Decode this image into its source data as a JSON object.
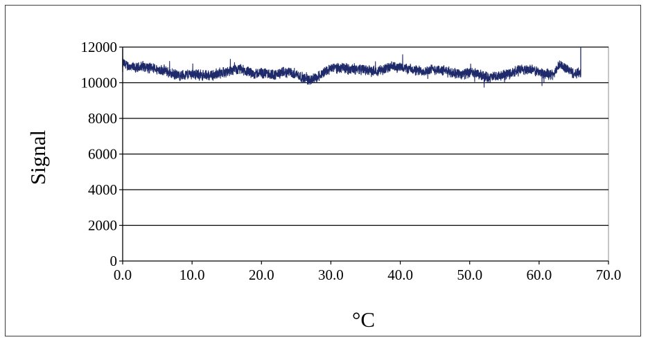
{
  "chart_data": {
    "type": "line",
    "title": "",
    "xlabel": "°C",
    "ylabel": "Signal",
    "xlim": [
      0,
      70
    ],
    "ylim": [
      0,
      12000
    ],
    "x_ticks": [
      "0.0",
      "10.0",
      "20.0",
      "30.0",
      "40.0",
      "50.0",
      "60.0",
      "70.0"
    ],
    "y_ticks": [
      "0",
      "2000",
      "4000",
      "6000",
      "8000",
      "10000",
      "12000"
    ],
    "grid": "horizontal",
    "legend": "none",
    "series": [
      {
        "color": "#1f2a6b",
        "points": [
          [
            0.0,
            11100
          ],
          [
            1.0,
            10900
          ],
          [
            2.0,
            10800
          ],
          [
            3.0,
            10950
          ],
          [
            4.0,
            10800
          ],
          [
            5.0,
            10750
          ],
          [
            6.0,
            10700
          ],
          [
            7.0,
            10500
          ],
          [
            8.0,
            10400
          ],
          [
            9.0,
            10450
          ],
          [
            10.0,
            10500
          ],
          [
            11.0,
            10450
          ],
          [
            12.0,
            10400
          ],
          [
            13.0,
            10450
          ],
          [
            14.0,
            10550
          ],
          [
            15.0,
            10600
          ],
          [
            16.0,
            10700
          ],
          [
            17.0,
            10750
          ],
          [
            18.0,
            10600
          ],
          [
            19.0,
            10500
          ],
          [
            20.0,
            10550
          ],
          [
            21.0,
            10500
          ],
          [
            22.0,
            10450
          ],
          [
            23.0,
            10550
          ],
          [
            24.0,
            10600
          ],
          [
            25.0,
            10500
          ],
          [
            26.0,
            10250
          ],
          [
            27.0,
            10150
          ],
          [
            28.0,
            10300
          ],
          [
            29.0,
            10600
          ],
          [
            30.0,
            10800
          ],
          [
            31.0,
            10850
          ],
          [
            32.0,
            10800
          ],
          [
            33.0,
            10750
          ],
          [
            34.0,
            10800
          ],
          [
            35.0,
            10700
          ],
          [
            36.0,
            10650
          ],
          [
            37.0,
            10700
          ],
          [
            38.0,
            10800
          ],
          [
            39.0,
            10900
          ],
          [
            40.0,
            10850
          ],
          [
            41.0,
            10800
          ],
          [
            42.0,
            10700
          ],
          [
            43.0,
            10650
          ],
          [
            44.0,
            10700
          ],
          [
            45.0,
            10750
          ],
          [
            46.0,
            10700
          ],
          [
            47.0,
            10600
          ],
          [
            48.0,
            10550
          ],
          [
            49.0,
            10500
          ],
          [
            50.0,
            10550
          ],
          [
            51.0,
            10500
          ],
          [
            52.0,
            10350
          ],
          [
            53.0,
            10300
          ],
          [
            54.0,
            10350
          ],
          [
            55.0,
            10450
          ],
          [
            56.0,
            10550
          ],
          [
            57.0,
            10700
          ],
          [
            58.0,
            10750
          ],
          [
            59.0,
            10700
          ],
          [
            60.0,
            10600
          ],
          [
            61.0,
            10500
          ],
          [
            62.0,
            10450
          ],
          [
            63.0,
            11000
          ],
          [
            64.0,
            10800
          ],
          [
            65.0,
            10500
          ],
          [
            66.0,
            10600
          ]
        ],
        "noise_amplitude": 350
      }
    ]
  }
}
